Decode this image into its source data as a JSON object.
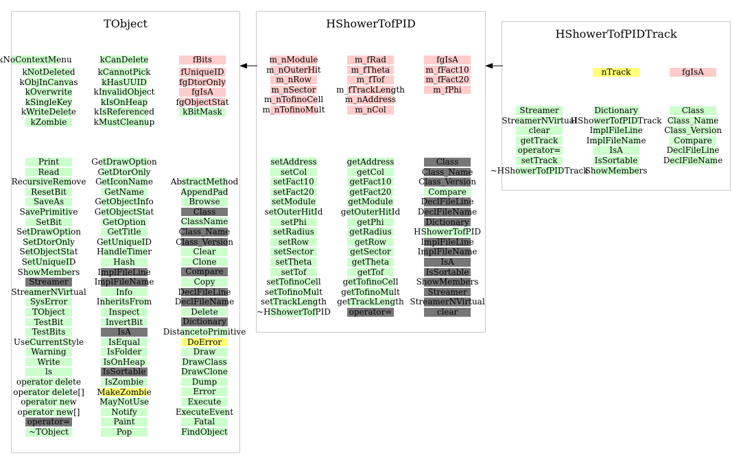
{
  "boxes": [
    {
      "title": "TObject",
      "columns": [
        [
          {
            "t": "kNoContextMenu",
            "c": "green"
          }
        ],
        [
          {
            "t": "kCanDelete",
            "c": "green"
          }
        ],
        [
          {
            "t": "fBits",
            "c": "pink"
          }
        ],
        [
          {
            "t": "kNotDeleted",
            "c": "green"
          },
          {
            "t": "kObjInCanvas",
            "c": "green"
          },
          {
            "t": "kOverwrite",
            "c": "green"
          },
          {
            "t": "kSingleKey",
            "c": "green"
          },
          {
            "t": "kWriteDelete",
            "c": "green"
          },
          {
            "t": "kZombie",
            "c": "green"
          }
        ],
        [
          {
            "t": "kCannotPick",
            "c": "green"
          },
          {
            "t": "kHasUUID",
            "c": "green"
          },
          {
            "t": "kInvalidObject",
            "c": "green"
          },
          {
            "t": "kIsOnHeap",
            "c": "green"
          },
          {
            "t": "kIsReferenced",
            "c": "green"
          },
          {
            "t": "kMustCleanup",
            "c": "green"
          }
        ],
        [
          {
            "t": "fUniqueID",
            "c": "pink"
          },
          {
            "t": "fgDtorOnly",
            "c": "pink"
          },
          {
            "t": "fgIsA",
            "c": "pink"
          },
          {
            "t": "fgObjectStat",
            "c": "pink"
          },
          {
            "t": "kBitMask",
            "c": "green"
          }
        ],
        [
          {
            "t": "Print",
            "c": "green"
          },
          {
            "t": "Read",
            "c": "green"
          },
          {
            "t": "RecursiveRemove",
            "c": "green"
          },
          {
            "t": "ResetBit",
            "c": "green"
          },
          {
            "t": "SaveAs",
            "c": "green"
          },
          {
            "t": "SavePrimitive",
            "c": "green"
          },
          {
            "t": "SetBit",
            "c": "green"
          },
          {
            "t": "SetDrawOption",
            "c": "green"
          },
          {
            "t": "SetDtorOnly",
            "c": "green"
          },
          {
            "t": "SetObjectStat",
            "c": "green"
          },
          {
            "t": "SetUniqueID",
            "c": "green"
          },
          {
            "t": "ShowMembers",
            "c": "green"
          },
          {
            "t": "Streamer",
            "c": "gray"
          },
          {
            "t": "StreamerNVirtual",
            "c": "green"
          },
          {
            "t": "SysError",
            "c": "green"
          },
          {
            "t": "TObject",
            "c": "green"
          },
          {
            "t": "TestBit",
            "c": "green"
          },
          {
            "t": "TestBits",
            "c": "green"
          },
          {
            "t": "UseCurrentStyle",
            "c": "green"
          },
          {
            "t": "Warning",
            "c": "green"
          },
          {
            "t": "Write",
            "c": "green"
          },
          {
            "t": "ls",
            "c": "green"
          },
          {
            "t": "operator delete",
            "c": "green"
          },
          {
            "t": "operator delete[]",
            "c": "green"
          },
          {
            "t": "operator new",
            "c": "green"
          },
          {
            "t": "operator new[]",
            "c": "green"
          },
          {
            "t": "operator=",
            "c": "gray"
          },
          {
            "t": "~TObject",
            "c": "green"
          }
        ],
        [
          {
            "t": "GetDrawOption",
            "c": "green"
          },
          {
            "t": "GetDtorOnly",
            "c": "green"
          },
          {
            "t": "GetIconName",
            "c": "green"
          },
          {
            "t": "GetName",
            "c": "green"
          },
          {
            "t": "GetObjectInfo",
            "c": "green"
          },
          {
            "t": "GetObjectStat",
            "c": "green"
          },
          {
            "t": "GetOption",
            "c": "green"
          },
          {
            "t": "GetTitle",
            "c": "green"
          },
          {
            "t": "GetUniqueID",
            "c": "green"
          },
          {
            "t": "HandleTimer",
            "c": "green"
          },
          {
            "t": "Hash",
            "c": "green"
          },
          {
            "t": "ImplFileLine",
            "c": "gray"
          },
          {
            "t": "ImplFileName",
            "c": "gray"
          },
          {
            "t": "Info",
            "c": "green"
          },
          {
            "t": "InheritsFrom",
            "c": "green"
          },
          {
            "t": "Inspect",
            "c": "green"
          },
          {
            "t": "InvertBit",
            "c": "green"
          },
          {
            "t": "IsA",
            "c": "gray"
          },
          {
            "t": "IsEqual",
            "c": "green"
          },
          {
            "t": "IsFolder",
            "c": "green"
          },
          {
            "t": "IsOnHeap",
            "c": "green"
          },
          {
            "t": "IsSortable",
            "c": "gray"
          },
          {
            "t": "IsZombie",
            "c": "green"
          },
          {
            "t": "MakeZombie",
            "c": "yellow"
          },
          {
            "t": "MayNotUse",
            "c": "green"
          },
          {
            "t": "Notify",
            "c": "green"
          },
          {
            "t": "Paint",
            "c": "green"
          },
          {
            "t": "Pop",
            "c": "green"
          }
        ],
        [
          {
            "t": "AbstractMethod",
            "c": "green"
          },
          {
            "t": "AppendPad",
            "c": "green"
          },
          {
            "t": "Browse",
            "c": "green"
          },
          {
            "t": "Class",
            "c": "gray"
          },
          {
            "t": "ClassName",
            "c": "green"
          },
          {
            "t": "Class_Name",
            "c": "gray"
          },
          {
            "t": "Class_Version",
            "c": "gray"
          },
          {
            "t": "Clear",
            "c": "green"
          },
          {
            "t": "Clone",
            "c": "green"
          },
          {
            "t": "Compare",
            "c": "gray"
          },
          {
            "t": "Copy",
            "c": "green"
          },
          {
            "t": "DeclFileLine",
            "c": "gray"
          },
          {
            "t": "DeclFileName",
            "c": "gray"
          },
          {
            "t": "Delete",
            "c": "green"
          },
          {
            "t": "Dictionary",
            "c": "gray"
          },
          {
            "t": "DistancetoPrimitive",
            "c": "green"
          },
          {
            "t": "DoError",
            "c": "yellow"
          },
          {
            "t": "Draw",
            "c": "green"
          },
          {
            "t": "DrawClass",
            "c": "green"
          },
          {
            "t": "DrawClone",
            "c": "green"
          },
          {
            "t": "Dump",
            "c": "green"
          },
          {
            "t": "Error",
            "c": "green"
          },
          {
            "t": "Execute",
            "c": "green"
          },
          {
            "t": "ExecuteEvent",
            "c": "green"
          },
          {
            "t": "Fatal",
            "c": "green"
          },
          {
            "t": "FindObject",
            "c": "green"
          }
        ]
      ]
    },
    {
      "title": "HShowerTofPID",
      "columns": [
        [
          {
            "t": "m_nModule",
            "c": "pink"
          },
          {
            "t": "m_nOuterHit",
            "c": "pink"
          },
          {
            "t": "m_nRow",
            "c": "pink"
          },
          {
            "t": "m_nSector",
            "c": "pink"
          },
          {
            "t": "m_nTofinoCell",
            "c": "pink"
          },
          {
            "t": "m_nTofinoMult",
            "c": "pink"
          }
        ],
        [
          {
            "t": "m_fRad",
            "c": "pink"
          },
          {
            "t": "m_fTheta",
            "c": "pink"
          },
          {
            "t": "m_fTof",
            "c": "pink"
          },
          {
            "t": "m_fTrackLength",
            "c": "pink"
          },
          {
            "t": "m_nAddress",
            "c": "pink"
          },
          {
            "t": "m_nCol",
            "c": "pink"
          }
        ],
        [
          {
            "t": "fgIsA",
            "c": "pink"
          },
          {
            "t": "m_fFact10",
            "c": "pink"
          },
          {
            "t": "m_fFact20",
            "c": "pink"
          },
          {
            "t": "m_fPhi",
            "c": "pink"
          }
        ],
        [
          {
            "t": "setAddress",
            "c": "green"
          },
          {
            "t": "setCol",
            "c": "green"
          },
          {
            "t": "setFact10",
            "c": "green"
          },
          {
            "t": "setFact20",
            "c": "green"
          },
          {
            "t": "setModule",
            "c": "green"
          },
          {
            "t": "setOuterHitId",
            "c": "green"
          },
          {
            "t": "setPhi",
            "c": "green"
          },
          {
            "t": "setRadius",
            "c": "green"
          },
          {
            "t": "setRow",
            "c": "green"
          },
          {
            "t": "setSector",
            "c": "green"
          },
          {
            "t": "setTheta",
            "c": "green"
          },
          {
            "t": "setTof",
            "c": "green"
          },
          {
            "t": "setTofinoCell",
            "c": "green"
          },
          {
            "t": "setTofinoMult",
            "c": "green"
          },
          {
            "t": "setTrackLength",
            "c": "green"
          },
          {
            "t": "~HShowerTofPID",
            "c": "green"
          }
        ],
        [
          {
            "t": "getAddress",
            "c": "green"
          },
          {
            "t": "getCol",
            "c": "green"
          },
          {
            "t": "getFact10",
            "c": "green"
          },
          {
            "t": "getFact20",
            "c": "green"
          },
          {
            "t": "getModule",
            "c": "green"
          },
          {
            "t": "getOuterHitId",
            "c": "green"
          },
          {
            "t": "getPhi",
            "c": "green"
          },
          {
            "t": "getRadius",
            "c": "green"
          },
          {
            "t": "getRow",
            "c": "green"
          },
          {
            "t": "getSector",
            "c": "green"
          },
          {
            "t": "getTheta",
            "c": "green"
          },
          {
            "t": "getTof",
            "c": "green"
          },
          {
            "t": "getTofinoCell",
            "c": "green"
          },
          {
            "t": "getTofinoMult",
            "c": "green"
          },
          {
            "t": "getTrackLength",
            "c": "green"
          },
          {
            "t": "operator=",
            "c": "gray"
          }
        ],
        [
          {
            "t": "Class",
            "c": "gray"
          },
          {
            "t": "Class_Name",
            "c": "gray"
          },
          {
            "t": "Class_Version",
            "c": "gray"
          },
          {
            "t": "Compare",
            "c": "green"
          },
          {
            "t": "DeclFileLine",
            "c": "gray"
          },
          {
            "t": "DeclFileName",
            "c": "gray"
          },
          {
            "t": "Dictionary",
            "c": "gray"
          },
          {
            "t": "HShowerTofPID",
            "c": "green"
          },
          {
            "t": "ImplFileLine",
            "c": "gray"
          },
          {
            "t": "ImplFileName",
            "c": "gray"
          },
          {
            "t": "IsA",
            "c": "gray"
          },
          {
            "t": "IsSortable",
            "c": "gray"
          },
          {
            "t": "ShowMembers",
            "c": "gray"
          },
          {
            "t": "Streamer",
            "c": "gray"
          },
          {
            "t": "StreamerNVirtual",
            "c": "gray"
          },
          {
            "t": "clear",
            "c": "gray"
          }
        ]
      ]
    },
    {
      "title": "HShowerTofPIDTrack",
      "columns": [
        [
          {
            "t": "nTrack",
            "c": "yellow"
          }
        ],
        [
          {
            "t": "fgIsA",
            "c": "pink"
          }
        ],
        [
          {
            "t": "Streamer",
            "c": "green"
          },
          {
            "t": "StreamerNVirtual",
            "c": "green"
          },
          {
            "t": "clear",
            "c": "green"
          },
          {
            "t": "getTrack",
            "c": "green"
          },
          {
            "t": "operator=",
            "c": "green"
          },
          {
            "t": "setTrack",
            "c": "green"
          },
          {
            "t": "~HShowerTofPIDTrack",
            "c": "green"
          }
        ],
        [
          {
            "t": "Dictionary",
            "c": "green"
          },
          {
            "t": "HShowerTofPIDTrack",
            "c": "green"
          },
          {
            "t": "ImplFileLine",
            "c": "green"
          },
          {
            "t": "ImplFileName",
            "c": "green"
          },
          {
            "t": "IsA",
            "c": "green"
          },
          {
            "t": "IsSortable",
            "c": "green"
          },
          {
            "t": "ShowMembers",
            "c": "green"
          }
        ],
        [
          {
            "t": "Class",
            "c": "green"
          },
          {
            "t": "Class_Name",
            "c": "green"
          },
          {
            "t": "Class_Version",
            "c": "green"
          },
          {
            "t": "Compare",
            "c": "green"
          },
          {
            "t": "DeclFileLine",
            "c": "green"
          },
          {
            "t": "DeclFileName",
            "c": "green"
          }
        ]
      ]
    }
  ]
}
